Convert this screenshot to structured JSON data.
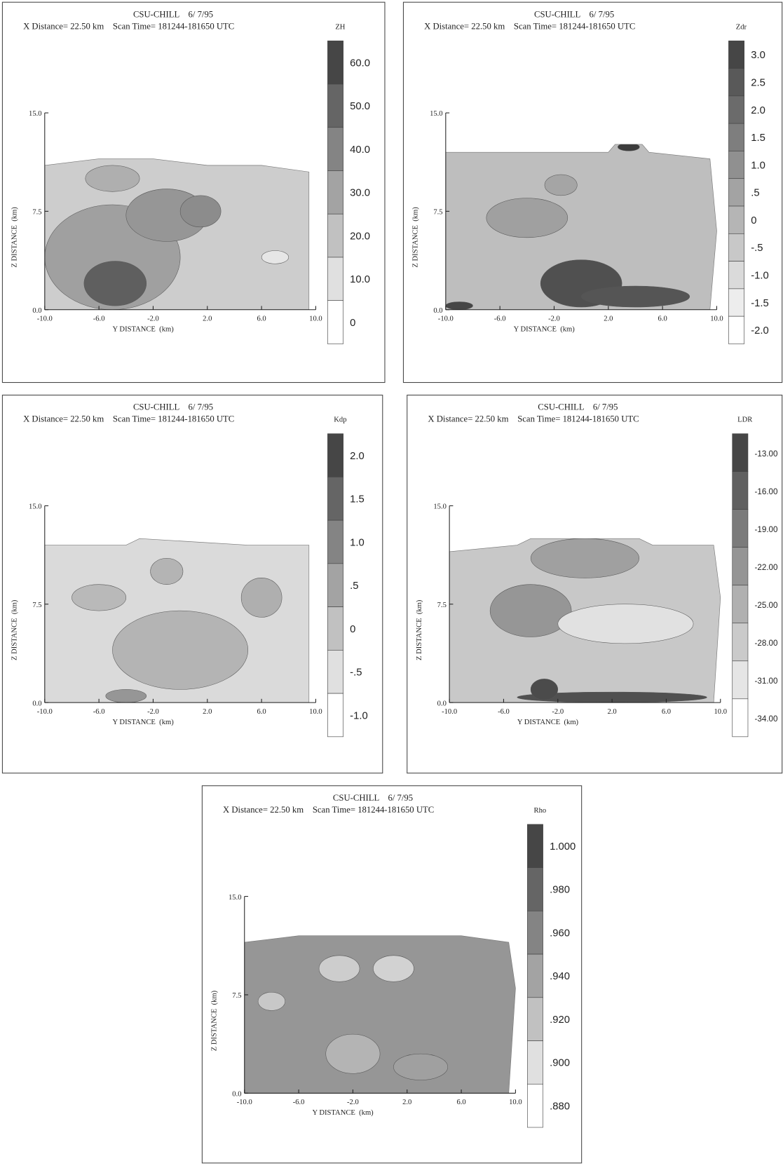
{
  "chart_data": [
    {
      "type": "contour",
      "title": "CSU-CHILL    6/ 7/95",
      "subtitle": "X Distance= 22.50 km    Scan Time= 181244-181650 UTC",
      "colorbar_label": "ZH",
      "x_label": "Y DISTANCE  (km)",
      "y_label": "Z DISTANCE  (km)",
      "xlim": [
        -10,
        10
      ],
      "xticks": [
        {
          "value": -10,
          "label": "-10.0"
        },
        {
          "value": -6,
          "label": "-6.0"
        },
        {
          "value": -2,
          "label": "-2.0"
        },
        {
          "value": 2,
          "label": "2.0"
        },
        {
          "value": 6,
          "label": "6.0"
        },
        {
          "value": 10,
          "label": "10.0"
        }
      ],
      "ylim": [
        0,
        15
      ],
      "yticks": [
        {
          "value": 0,
          "label": "0.0"
        },
        {
          "value": 7.5,
          "label": "7.5"
        },
        {
          "value": 15,
          "label": "15.0"
        }
      ],
      "colorbar_ticks": [
        {
          "value": 60,
          "label": "60.0"
        },
        {
          "value": 50,
          "label": "50.0"
        },
        {
          "value": 40,
          "label": "40.0"
        },
        {
          "value": 30,
          "label": "30.0"
        },
        {
          "value": 20,
          "label": "20.0"
        },
        {
          "value": 10,
          "label": "10.0"
        },
        0
      ]
    },
    {
      "type": "contour",
      "title": "CSU-CHILL    6/ 7/95",
      "subtitle": "X Distance= 22.50 km    Scan Time= 181244-181650 UTC",
      "colorbar_label": "Zdr",
      "x_label": "Y DISTANCE  (km)",
      "y_label": "Z DISTANCE  (km)",
      "xlim": [
        -10,
        10
      ],
      "xticks": [
        {
          "value": -10,
          "label": "-10.0"
        },
        {
          "value": -6,
          "label": "-6.0"
        },
        {
          "value": -2,
          "label": "-2.0"
        },
        {
          "value": 2,
          "label": "2.0"
        },
        {
          "value": 6,
          "label": "6.0"
        },
        {
          "value": 10,
          "label": "10.0"
        }
      ],
      "ylim": [
        0,
        15
      ],
      "yticks": [
        {
          "value": 0,
          "label": "0.0"
        },
        {
          "value": 7.5,
          "label": "7.5"
        },
        {
          "value": 15,
          "label": "15.0"
        }
      ],
      "colorbar_ticks": [
        {
          "value": 3,
          "label": "3.0"
        },
        2.5,
        {
          "value": 2,
          "label": "2.0"
        },
        1.5,
        {
          "value": 1,
          "label": "1.0"
        },
        {
          "value": 0.5,
          "label": ".5"
        },
        0,
        {
          "value": -0.5,
          "label": "-.5"
        },
        {
          "value": -1,
          "label": "-1.0"
        },
        -1.5,
        {
          "value": -2,
          "label": "-2.0"
        }
      ]
    },
    {
      "type": "contour",
      "title": "CSU-CHILL    6/ 7/95",
      "subtitle": "X Distance= 22.50 km    Scan Time= 181244-181650 UTC",
      "colorbar_label": "Kdp",
      "x_label": "Y DISTANCE  (km)",
      "y_label": "Z DISTANCE  (km)",
      "xlim": [
        -10,
        10
      ],
      "xticks": [
        {
          "value": -10,
          "label": "-10.0"
        },
        {
          "value": -6,
          "label": "-6.0"
        },
        {
          "value": -2,
          "label": "-2.0"
        },
        {
          "value": 2,
          "label": "2.0"
        },
        {
          "value": 6,
          "label": "6.0"
        },
        {
          "value": 10,
          "label": "10.0"
        }
      ],
      "ylim": [
        0,
        15
      ],
      "yticks": [
        {
          "value": 0,
          "label": "0.0"
        },
        {
          "value": 7.5,
          "label": "7.5"
        },
        {
          "value": 15,
          "label": "15.0"
        }
      ],
      "colorbar_ticks": [
        {
          "value": 2,
          "label": "2.0"
        },
        1.5,
        {
          "value": 1,
          "label": "1.0"
        },
        {
          "value": 0.5,
          "label": ".5"
        },
        0,
        {
          "value": -0.5,
          "label": "-.5"
        },
        {
          "value": -1,
          "label": "-1.0"
        }
      ]
    },
    {
      "type": "contour",
      "title": "CSU-CHILL    6/ 7/95",
      "subtitle": "X Distance= 22.50 km    Scan Time= 181244-181650 UTC",
      "colorbar_label": "LDR",
      "x_label": "Y DISTANCE  (km)",
      "y_label": "Z DISTANCE  (km)",
      "xlim": [
        -10,
        10
      ],
      "xticks": [
        {
          "value": -10,
          "label": "-10.0"
        },
        {
          "value": -6,
          "label": "-6.0"
        },
        {
          "value": -2,
          "label": "-2.0"
        },
        {
          "value": 2,
          "label": "2.0"
        },
        {
          "value": 6,
          "label": "6.0"
        },
        {
          "value": 10,
          "label": "10.0"
        }
      ],
      "ylim": [
        0,
        15
      ],
      "yticks": [
        {
          "value": 0,
          "label": "0.0"
        },
        {
          "value": 7.5,
          "label": "7.5"
        },
        {
          "value": 15,
          "label": "15.0"
        }
      ],
      "colorbar_ticks": [
        {
          "value": -13,
          "label": "-13.00"
        },
        {
          "value": -16,
          "label": "-16.00"
        },
        {
          "value": -19,
          "label": "-19.00"
        },
        {
          "value": -22,
          "label": "-22.00"
        },
        {
          "value": -25,
          "label": "-25.00"
        },
        {
          "value": -28,
          "label": "-28.00"
        },
        {
          "value": -31,
          "label": "-31.00"
        },
        {
          "value": -34,
          "label": "-34.00"
        }
      ]
    },
    {
      "type": "contour",
      "title": "CSU-CHILL    6/ 7/95",
      "subtitle": "X Distance= 22.50 km    Scan Time= 181244-181650 UTC",
      "colorbar_label": "Rho",
      "x_label": "Y DISTANCE  (km)",
      "y_label": "Z DISTANCE  (km)",
      "xlim": [
        -10,
        10
      ],
      "xticks": [
        {
          "value": -10,
          "label": "-10.0"
        },
        {
          "value": -6,
          "label": "-6.0"
        },
        {
          "value": -2,
          "label": "-2.0"
        },
        {
          "value": 2,
          "label": "2.0"
        },
        {
          "value": 6,
          "label": "6.0"
        },
        {
          "value": 10,
          "label": "10.0"
        }
      ],
      "ylim": [
        0,
        15
      ],
      "yticks": [
        {
          "value": 0,
          "label": "0.0"
        },
        {
          "value": 7.5,
          "label": "7.5"
        },
        {
          "value": 15,
          "label": "15.0"
        }
      ],
      "colorbar_ticks": [
        {
          "value": 1,
          "label": "1.000"
        },
        {
          "value": 0.98,
          "label": ".980"
        },
        {
          "value": 0.96,
          "label": ".960"
        },
        {
          "value": 0.94,
          "label": ".940"
        },
        {
          "value": 0.92,
          "label": ".920"
        },
        {
          "value": 0.9,
          "label": ".900"
        },
        {
          "value": 0.88,
          "label": ".880"
        }
      ]
    }
  ]
}
